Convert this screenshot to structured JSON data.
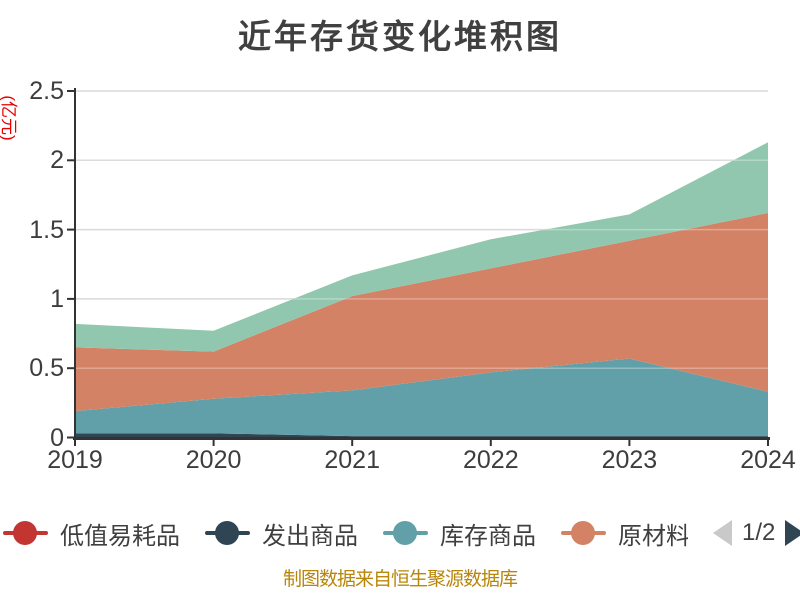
{
  "title": "近年存货变化堆积图",
  "y_axis_unit": "(亿元)",
  "footer": "制图数据来自恒生聚源数据库",
  "legend": {
    "items": [
      {
        "label": "低值易耗品",
        "color": "#c23531"
      },
      {
        "label": "发出商品",
        "color": "#2f4554"
      },
      {
        "label": "库存商品",
        "color": "#61a0a8"
      },
      {
        "label": "原材料",
        "color": "#d48265"
      }
    ],
    "page": "1/2",
    "prev_arrow_color": "#c9c9c9",
    "next_arrow_color": "#2f4554"
  },
  "chart_data": {
    "type": "area",
    "stacked": true,
    "title": "近年存货变化堆积图",
    "ylabel": "(亿元)",
    "categories": [
      "2019",
      "2020",
      "2021",
      "2022",
      "2023",
      "2024"
    ],
    "ylim": [
      0,
      2.5
    ],
    "yticks": [
      "0",
      "0.5",
      "1",
      "1.5",
      "2",
      "2.5"
    ],
    "grid": true,
    "legend_position": "bottom",
    "series": [
      {
        "name": "发出商品",
        "color": "#2f4554",
        "values": [
          0.03,
          0.03,
          0.01,
          0.01,
          0.01,
          0.01
        ]
      },
      {
        "name": "库存商品",
        "color": "#61a0a8",
        "values": [
          0.16,
          0.25,
          0.33,
          0.46,
          0.56,
          0.32
        ]
      },
      {
        "name": "原材料",
        "color": "#d48265",
        "values": [
          0.46,
          0.34,
          0.68,
          0.75,
          0.85,
          1.29
        ]
      },
      {
        "name": "低值易耗品",
        "color": "#c23531",
        "values": [
          0,
          0,
          0,
          0,
          0,
          0
        ]
      },
      {
        "name": "",
        "legend_hidden": true,
        "color": "#91c7ae",
        "values": [
          0.17,
          0.15,
          0.15,
          0.21,
          0.19,
          0.51
        ]
      }
    ],
    "stack_totals": [
      0.82,
      0.77,
      1.17,
      1.43,
      1.61,
      2.13
    ]
  }
}
